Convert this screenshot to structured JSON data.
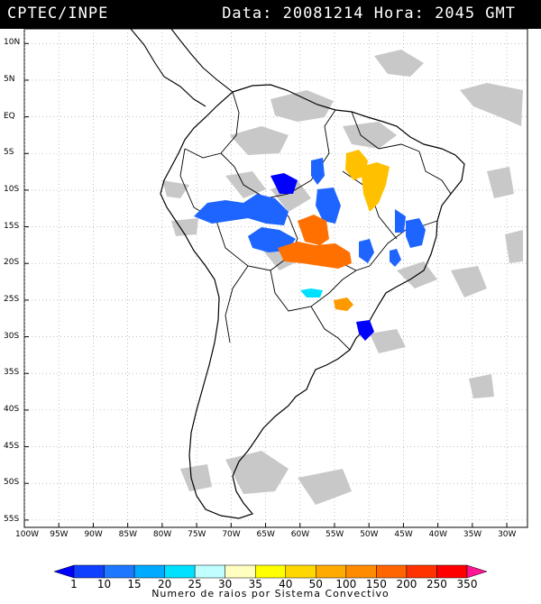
{
  "header": {
    "agency": "CPTEC/INPE",
    "timestamp": "Data: 20081214 Hora: 2045 GMT"
  },
  "map": {
    "lat_labels": [
      "10N",
      "5N",
      "EQ",
      "5S",
      "10S",
      "15S",
      "20S",
      "25S",
      "30S",
      "35S",
      "40S",
      "45S",
      "50S",
      "55S"
    ],
    "lat_values": [
      10,
      5,
      0,
      -5,
      -10,
      -15,
      -20,
      -25,
      -30,
      -35,
      -40,
      -45,
      -50,
      -55
    ],
    "lon_labels": [
      "100W",
      "95W",
      "90W",
      "85W",
      "80W",
      "75W",
      "70W",
      "65W",
      "60W",
      "55W",
      "50W",
      "45W",
      "40W",
      "35W",
      "30W"
    ],
    "lon_values": [
      -100,
      -95,
      -90,
      -85,
      -80,
      -75,
      -70,
      -65,
      -60,
      -55,
      -50,
      -45,
      -40,
      -35,
      -30
    ],
    "extent": {
      "lon_min": -100,
      "lon_max": -27,
      "lat_min": -56,
      "lat_max": 12
    },
    "cloud_color": "#c8c8c8",
    "land_outline_color": "#000000",
    "background": "#ffffff"
  },
  "colorbar": {
    "title": "Numero de raios por Sistema Convectivo",
    "labels": [
      "1",
      "10",
      "15",
      "20",
      "25",
      "30",
      "35",
      "40",
      "50",
      "100",
      "150",
      "200",
      "250",
      "350"
    ],
    "colors": [
      "#0000ff",
      "#1040ff",
      "#1e78ff",
      "#00aaff",
      "#00e0ff",
      "#bfffff",
      "#ffffbf",
      "#ffff00",
      "#ffd700",
      "#ffaa00",
      "#ff8c00",
      "#ff6600",
      "#ff3300",
      "#ff0000",
      "#ff1493"
    ]
  },
  "storm_colors": {
    "dark_blue": "#0000ff",
    "blue": "#1e64ff",
    "cyan": "#00e0ff",
    "yellow": "#ffc000",
    "orange_light": "#ff9900",
    "orange": "#ff7000"
  }
}
